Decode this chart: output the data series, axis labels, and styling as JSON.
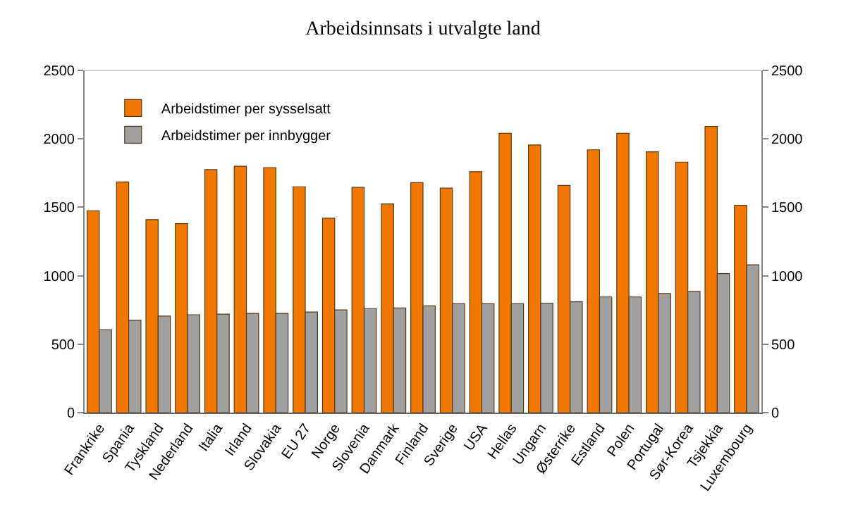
{
  "chart_data": {
    "type": "bar",
    "title": "Arbeidsinnsats i utvalgte land",
    "categories": [
      "Frankrike",
      "Spania",
      "Tyskland",
      "Nederland",
      "Italia",
      "Irland",
      "Slovakia",
      "EU 27",
      "Norge",
      "Slovenia",
      "Danmark",
      "Finland",
      "Sverige",
      "USA",
      "Hellas",
      "Ungarn",
      "Østerrike",
      "Estland",
      "Polen",
      "Portugal",
      "Sør-Korea",
      "Tsjekkia",
      "Luxembourg"
    ],
    "series": [
      {
        "name": "Arbeidstimer per sysselsatt",
        "color": "#f07800",
        "values": [
          1475,
          1685,
          1410,
          1380,
          1775,
          1800,
          1790,
          1650,
          1420,
          1645,
          1525,
          1680,
          1640,
          1760,
          2040,
          1955,
          1660,
          1920,
          2040,
          1905,
          1830,
          2090,
          1515
        ]
      },
      {
        "name": "Arbeidstimer per innbygger",
        "color": "#a0a0a0",
        "values": [
          605,
          675,
          705,
          715,
          720,
          725,
          725,
          735,
          750,
          760,
          765,
          780,
          795,
          795,
          795,
          800,
          810,
          845,
          845,
          870,
          885,
          1015,
          1080
        ]
      }
    ],
    "ylim": [
      0,
      2500
    ],
    "yticks": [
      0,
      500,
      1000,
      1500,
      2000,
      2500
    ],
    "y2lim": [
      0,
      2500
    ],
    "y2ticks": [
      0,
      500,
      1000,
      1500,
      2000,
      2500
    ],
    "grid": false,
    "legend": "top left"
  }
}
